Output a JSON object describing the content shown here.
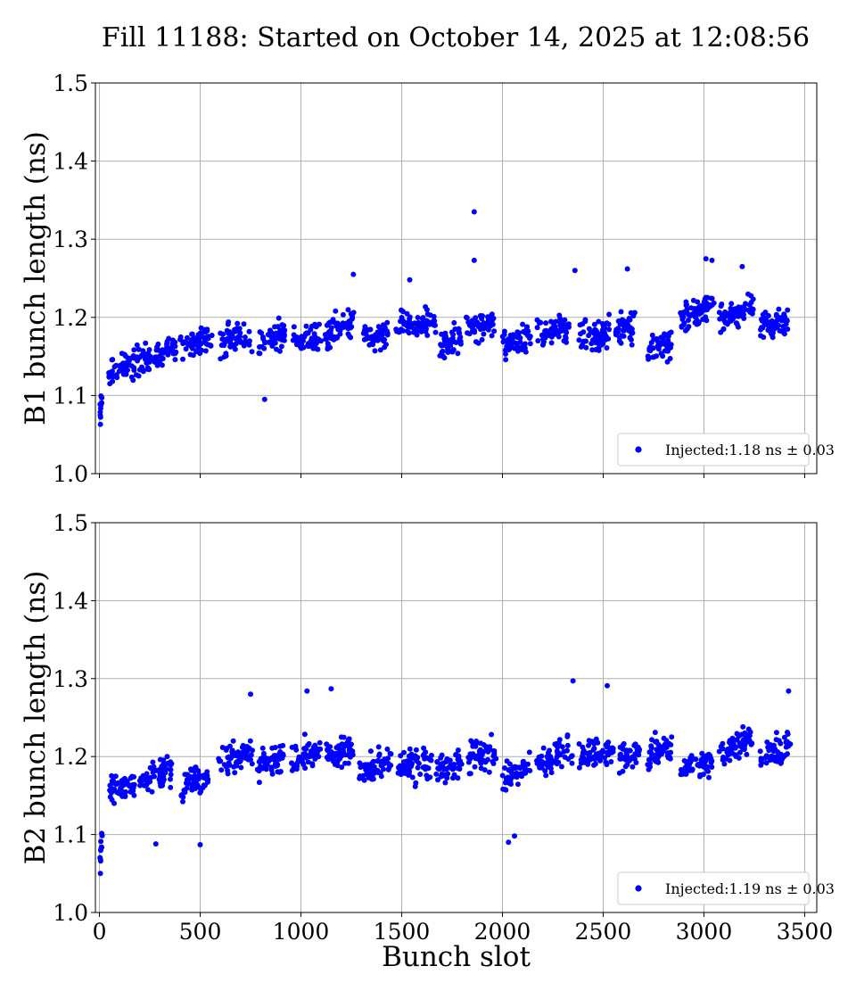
{
  "title": "Fill 11188: Started on October 14, 2025 at 12:08:56",
  "colors": {
    "points": "#0000ff"
  },
  "chart_data": [
    {
      "type": "scatter",
      "ylabel": "B1 bunch length (ns)",
      "xlabel": "",
      "xlim": [
        -20,
        3560
      ],
      "ylim": [
        1.0,
        1.5
      ],
      "xticks": [
        0,
        500,
        1000,
        1500,
        2000,
        2500,
        3000,
        3500
      ],
      "yticks": [
        "1.0",
        "1.1",
        "1.2",
        "1.3",
        "1.4",
        "1.5"
      ],
      "show_xtick_labels": false,
      "grid": true,
      "legend_position": "lower-right",
      "series": [
        {
          "name": "Injected:1.18 ns ± 0.03",
          "segments": [
            {
              "x0": 0,
              "x1": 14,
              "y0": 1.075,
              "y1": 1.1,
              "n": 10
            },
            {
              "x0": 45,
              "x1": 150,
              "y0": 1.125,
              "y1": 1.145,
              "n": 45
            },
            {
              "x0": 160,
              "x1": 260,
              "y0": 1.14,
              "y1": 1.15,
              "n": 45
            },
            {
              "x0": 270,
              "x1": 380,
              "y0": 1.15,
              "y1": 1.16,
              "n": 45
            },
            {
              "x0": 400,
              "x1": 560,
              "y0": 1.16,
              "y1": 1.175,
              "n": 60
            },
            {
              "x0": 600,
              "x1": 760,
              "y0": 1.165,
              "y1": 1.175,
              "n": 60
            },
            {
              "x0": 790,
              "x1": 920,
              "y0": 1.17,
              "y1": 1.175,
              "n": 50
            },
            {
              "x0": 960,
              "x1": 1100,
              "y0": 1.165,
              "y1": 1.175,
              "n": 55
            },
            {
              "x0": 1120,
              "x1": 1270,
              "y0": 1.175,
              "y1": 1.195,
              "n": 60
            },
            {
              "x0": 1310,
              "x1": 1440,
              "y0": 1.175,
              "y1": 1.18,
              "n": 50
            },
            {
              "x0": 1470,
              "x1": 1670,
              "y0": 1.185,
              "y1": 1.195,
              "n": 70
            },
            {
              "x0": 1690,
              "x1": 1800,
              "y0": 1.165,
              "y1": 1.17,
              "n": 45
            },
            {
              "x0": 1820,
              "x1": 1960,
              "y0": 1.185,
              "y1": 1.195,
              "n": 55
            },
            {
              "x0": 2000,
              "x1": 2140,
              "y0": 1.165,
              "y1": 1.175,
              "n": 55
            },
            {
              "x0": 2170,
              "x1": 2330,
              "y0": 1.175,
              "y1": 1.19,
              "n": 60
            },
            {
              "x0": 2380,
              "x1": 2530,
              "y0": 1.175,
              "y1": 1.18,
              "n": 60
            },
            {
              "x0": 2560,
              "x1": 2660,
              "y0": 1.185,
              "y1": 1.19,
              "n": 40
            },
            {
              "x0": 2720,
              "x1": 2840,
              "y0": 1.16,
              "y1": 1.165,
              "n": 50
            },
            {
              "x0": 2880,
              "x1": 3050,
              "y0": 1.195,
              "y1": 1.215,
              "n": 65
            },
            {
              "x0": 3070,
              "x1": 3250,
              "y0": 1.195,
              "y1": 1.215,
              "n": 65
            },
            {
              "x0": 3280,
              "x1": 3420,
              "y0": 1.185,
              "y1": 1.195,
              "n": 55
            }
          ],
          "outliers": [
            {
              "x": 1860,
              "y": 1.335
            },
            {
              "x": 1860,
              "y": 1.273
            },
            {
              "x": 820,
              "y": 1.095
            },
            {
              "x": 5,
              "y": 1.063
            },
            {
              "x": 2360,
              "y": 1.26
            },
            {
              "x": 3010,
              "y": 1.275
            },
            {
              "x": 3040,
              "y": 1.273
            },
            {
              "x": 2620,
              "y": 1.262
            },
            {
              "x": 1260,
              "y": 1.255
            },
            {
              "x": 1540,
              "y": 1.248
            },
            {
              "x": 3190,
              "y": 1.265
            }
          ]
        }
      ]
    },
    {
      "type": "scatter",
      "ylabel": "B2 bunch length (ns)",
      "xlabel": "Bunch slot",
      "xlim": [
        -20,
        3560
      ],
      "ylim": [
        1.0,
        1.5
      ],
      "xticks": [
        0,
        500,
        1000,
        1500,
        2000,
        2500,
        3000,
        3500
      ],
      "yticks": [
        "1.0",
        "1.1",
        "1.2",
        "1.3",
        "1.4",
        "1.5"
      ],
      "show_xtick_labels": true,
      "grid": true,
      "legend_position": "lower-right",
      "series": [
        {
          "name": "Injected:1.19 ns ± 0.03",
          "segments": [
            {
              "x0": 0,
              "x1": 14,
              "y0": 1.06,
              "y1": 1.1,
              "n": 10
            },
            {
              "x0": 50,
              "x1": 180,
              "y0": 1.16,
              "y1": 1.165,
              "n": 55
            },
            {
              "x0": 200,
              "x1": 360,
              "y0": 1.165,
              "y1": 1.185,
              "n": 60
            },
            {
              "x0": 400,
              "x1": 540,
              "y0": 1.16,
              "y1": 1.175,
              "n": 55
            },
            {
              "x0": 590,
              "x1": 760,
              "y0": 1.19,
              "y1": 1.205,
              "n": 65
            },
            {
              "x0": 780,
              "x1": 920,
              "y0": 1.185,
              "y1": 1.2,
              "n": 55
            },
            {
              "x0": 950,
              "x1": 1100,
              "y0": 1.195,
              "y1": 1.205,
              "n": 60
            },
            {
              "x0": 1120,
              "x1": 1260,
              "y0": 1.2,
              "y1": 1.21,
              "n": 60
            },
            {
              "x0": 1290,
              "x1": 1450,
              "y0": 1.18,
              "y1": 1.19,
              "n": 60
            },
            {
              "x0": 1480,
              "x1": 1650,
              "y0": 1.185,
              "y1": 1.195,
              "n": 70
            },
            {
              "x0": 1670,
              "x1": 1800,
              "y0": 1.185,
              "y1": 1.195,
              "n": 50
            },
            {
              "x0": 1830,
              "x1": 1970,
              "y0": 1.195,
              "y1": 1.205,
              "n": 55
            },
            {
              "x0": 2000,
              "x1": 2140,
              "y0": 1.17,
              "y1": 1.19,
              "n": 55
            },
            {
              "x0": 2170,
              "x1": 2350,
              "y0": 1.19,
              "y1": 1.21,
              "n": 65
            },
            {
              "x0": 2380,
              "x1": 2550,
              "y0": 1.2,
              "y1": 1.21,
              "n": 65
            },
            {
              "x0": 2580,
              "x1": 2680,
              "y0": 1.2,
              "y1": 1.205,
              "n": 40
            },
            {
              "x0": 2720,
              "x1": 2840,
              "y0": 1.2,
              "y1": 1.215,
              "n": 50
            },
            {
              "x0": 2880,
              "x1": 3040,
              "y0": 1.185,
              "y1": 1.195,
              "n": 60
            },
            {
              "x0": 3070,
              "x1": 3240,
              "y0": 1.2,
              "y1": 1.225,
              "n": 65
            },
            {
              "x0": 3280,
              "x1": 3430,
              "y0": 1.2,
              "y1": 1.215,
              "n": 55
            }
          ],
          "outliers": [
            {
              "x": 2350,
              "y": 1.297
            },
            {
              "x": 2520,
              "y": 1.291
            },
            {
              "x": 1150,
              "y": 1.287
            },
            {
              "x": 1030,
              "y": 1.284
            },
            {
              "x": 3420,
              "y": 1.284
            },
            {
              "x": 750,
              "y": 1.28
            },
            {
              "x": 5,
              "y": 1.05
            },
            {
              "x": 500,
              "y": 1.087
            },
            {
              "x": 280,
              "y": 1.088
            },
            {
              "x": 2030,
              "y": 1.09
            },
            {
              "x": 2060,
              "y": 1.098
            }
          ]
        }
      ]
    }
  ]
}
